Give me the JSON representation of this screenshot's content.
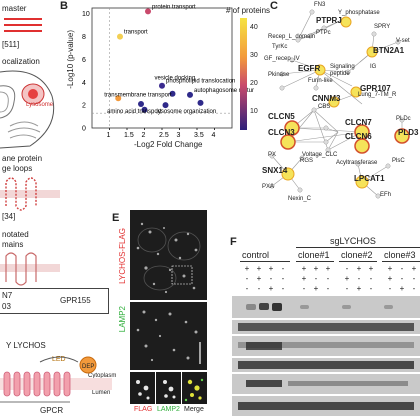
{
  "panelA": {
    "lines": [
      "master",
      "[511]",
      "ocalization",
      "ane protein",
      "ge loops",
      "[34]",
      "notated",
      "mains",
      "N7",
      "GPR155"
    ],
    "organelle_label": "Lysosome",
    "lychos_label": "LYCHOS",
    "led_label": "LED",
    "dep_label": "DEP",
    "cytoplasm_label": "Cytoplasm",
    "lumen_label": "Lumen",
    "gpcr_label": "GPCR"
  },
  "panelB": {
    "letter": "B",
    "colorbar_title": "# of proteins",
    "colorbar_ticks": [
      "40",
      "30",
      "20",
      "10"
    ],
    "chart_data": {
      "type": "scatter",
      "xlabel": "-Log2 Fold Change",
      "ylabel": "-Log10 (p-value)",
      "xlim": [
        0.5,
        4.5
      ],
      "ylim": [
        0,
        10.5
      ],
      "xticks": [
        "1",
        "1.5",
        "2",
        "2.5",
        "3",
        "3.5",
        "4"
      ],
      "yticks": [
        "0",
        "2",
        "4",
        "6",
        "8",
        "10"
      ],
      "points": [
        {
          "x": 2.1,
          "y": 10.2,
          "color": "#c94a6c",
          "label": "protein transport"
        },
        {
          "x": 1.3,
          "y": 8.0,
          "color": "#f3cf53",
          "label": "transport"
        },
        {
          "x": 2.5,
          "y": 3.7,
          "color": "#3b2b8f",
          "label": "phospholipid translocation"
        },
        {
          "x": 2.8,
          "y": 3.0,
          "color": "#2f2a8a",
          "label": "vesicle docking"
        },
        {
          "x": 3.3,
          "y": 2.9,
          "color": "#2f2a8a",
          "label": "autophagosome maturation"
        },
        {
          "x": 1.25,
          "y": 2.6,
          "color": "#f39a3c",
          "label": "transmembrane transport"
        },
        {
          "x": 1.9,
          "y": 2.1,
          "color": "#2f2a8a",
          "label": "amino acid transport"
        },
        {
          "x": 2.6,
          "y": 2.0,
          "color": "#2f2a8a",
          "label": ""
        },
        {
          "x": 3.6,
          "y": 2.2,
          "color": "#2f2a8a",
          "label": "lysosome organization"
        },
        {
          "x": 2.0,
          "y": 1.6,
          "color": "#2f2a8a",
          "label": ""
        }
      ]
    }
  },
  "panelC": {
    "letter": "C",
    "nodes": [
      {
        "label": "FN3",
        "hl": false
      },
      {
        "label": "Y_phosphatase",
        "hl": false
      },
      {
        "label": "PTPc",
        "hl": false
      },
      {
        "label": "PTPRJ",
        "hl": true
      },
      {
        "label": "SPRY",
        "hl": false
      },
      {
        "label": "Recep_L_domain",
        "hl": false
      },
      {
        "label": "BTN2A1",
        "hl": true
      },
      {
        "label": "V-set",
        "hl": false
      },
      {
        "label": "TyrKc",
        "hl": false
      },
      {
        "label": "EGFR",
        "hl": true
      },
      {
        "label": "IG",
        "hl": false
      },
      {
        "label": "GF_recep_IV",
        "hl": false
      },
      {
        "label": "Signaling peptide",
        "hl": false
      },
      {
        "label": "Pkinase",
        "hl": false
      },
      {
        "label": "Furin-like",
        "hl": false
      },
      {
        "label": "GPR107",
        "hl": true
      },
      {
        "label": "Lung_7-TM_R",
        "hl": false
      },
      {
        "label": "CNNM3",
        "hl": true
      },
      {
        "label": "CBS",
        "hl": false
      },
      {
        "label": "CLCN5",
        "hl": true
      },
      {
        "label": "CLCN7",
        "hl": true
      },
      {
        "label": "PLDc",
        "hl": false
      },
      {
        "label": "PLD3",
        "hl": true
      },
      {
        "label": "CLCN3",
        "hl": true
      },
      {
        "label": "CLCN6",
        "hl": true
      },
      {
        "label": "Voltage_CLC",
        "hl": false
      },
      {
        "label": "PX",
        "hl": false
      },
      {
        "label": "RGS",
        "hl": false
      },
      {
        "label": "SNX14",
        "hl": true
      },
      {
        "label": "Acyltransferase",
        "hl": false
      },
      {
        "label": "PlsC",
        "hl": false
      },
      {
        "label": "PXA",
        "hl": false
      },
      {
        "label": "Nexin_C",
        "hl": false
      },
      {
        "label": "LPCAT1",
        "hl": true
      },
      {
        "label": "EFh",
        "hl": false
      }
    ]
  },
  "panelE": {
    "letter": "E",
    "label_top": "LYCHOS-FLAG",
    "label_bottom": "LAMP2",
    "inset_labels": [
      "FLAG",
      "LAMP2",
      "Merge"
    ]
  },
  "panelF": {
    "letter": "F",
    "group_header": "sgLYCHOS",
    "columns": [
      "control",
      "clone#1",
      "clone#2",
      "clone#3"
    ],
    "rows": [
      [
        "+",
        "+",
        "+",
        "-",
        "+",
        "+",
        "+",
        "-",
        "+",
        "+",
        "+",
        "-",
        "+",
        "+"
      ],
      [
        "-",
        "+",
        "-",
        "-",
        "+",
        "-",
        "-",
        "+",
        "-",
        "-",
        "+",
        "-",
        "-",
        "+"
      ],
      [
        "-",
        "-",
        "+",
        "-",
        "-",
        "+",
        "-",
        "-",
        "+",
        "-",
        "-",
        "+",
        "-",
        "-"
      ]
    ]
  }
}
